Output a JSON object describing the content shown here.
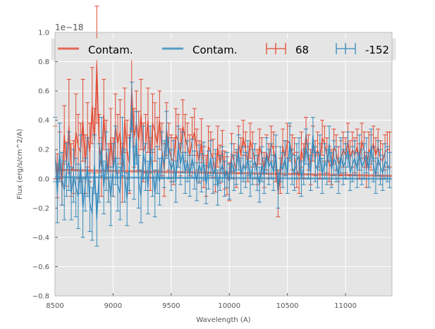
{
  "chart_data": {
    "type": "line",
    "title": "",
    "xlabel": "Wavelength (A)",
    "ylabel": "Flux (erg/s/cm^2/A)",
    "offset_text": "1e−18",
    "xlim": [
      8500,
      11400
    ],
    "ylim": [
      -0.8,
      1.0
    ],
    "xticks": [
      8500,
      9000,
      9500,
      10000,
      10500,
      11000
    ],
    "xtick_labels": [
      "8500",
      "9000",
      "9500",
      "10000",
      "10500",
      "11000"
    ],
    "yticks": [
      -0.8,
      -0.6,
      -0.4,
      -0.2,
      0.0,
      0.2,
      0.4,
      0.6,
      0.8,
      1.0
    ],
    "ytick_labels": [
      "−0.8",
      "−0.6",
      "−0.4",
      "−0.2",
      "0.0",
      "0.2",
      "0.4",
      "0.6",
      "0.8",
      "1.0"
    ],
    "grid": true,
    "legend_position": "top",
    "legend": [
      {
        "label": "Contam.",
        "kind": "line",
        "color": "#e24a33"
      },
      {
        "label": "Contam.",
        "kind": "line",
        "color": "#348abd"
      },
      {
        "label": "68",
        "kind": "errorbar",
        "color": "#e24a33"
      },
      {
        "label": "-152",
        "kind": "errorbar",
        "color": "#348abd"
      }
    ],
    "series": [
      {
        "name": "68",
        "color": "#e24a33",
        "x_start": 8500,
        "x_step": 20,
        "values": [
          0.18,
          0.02,
          0.16,
          -0.06,
          0.3,
          0.1,
          0.36,
          0.06,
          0.08,
          0.32,
          0.22,
          0.18,
          0.4,
          0.1,
          0.3,
          0.18,
          0.5,
          0.26,
          0.78,
          0.24,
          0.08,
          0.44,
          0.2,
          0.04,
          0.28,
          0.08,
          0.36,
          0.24,
          0.32,
          0.04,
          0.4,
          0.2,
          0.1,
          0.62,
          0.28,
          0.38,
          0.26,
          0.44,
          0.18,
          0.24,
          0.4,
          0.1,
          0.38,
          0.32,
          0.24,
          0.4,
          0.2,
          0.06,
          0.34,
          0.22,
          0.14,
          0.12,
          0.3,
          0.26,
          0.18,
          0.36,
          0.28,
          0.22,
          0.16,
          0.26,
          0.32,
          0.2,
          0.12,
          0.26,
          0.08,
          0.02,
          0.22,
          0.18,
          0.14,
          0.04,
          0.22,
          0.1,
          0.2,
          0.06,
          0.02,
          -0.02,
          0.18,
          0.12,
          0.06,
          0.24,
          0.16,
          0.28,
          0.2,
          0.1,
          0.26,
          0.2,
          0.12,
          0.08,
          0.22,
          0.16,
          0.06,
          0.18,
          0.12,
          0.24,
          0.2,
          0.1,
          -0.1,
          0.02,
          0.22,
          0.14,
          0.26,
          0.24,
          0.18,
          0.16,
          0.06,
          0.02,
          0.2,
          0.12,
          0.3,
          0.18,
          0.08,
          0.24,
          0.14,
          0.2,
          0.12,
          0.28,
          0.24,
          0.16,
          0.1,
          0.08,
          0.22,
          0.18,
          0.1,
          0.14,
          0.2,
          0.16,
          0.26,
          0.14,
          0.2,
          0.16,
          0.22,
          0.12,
          0.26,
          0.2,
          0.06,
          0.2,
          0.18,
          0.24,
          0.16,
          0.22,
          0.14,
          0.12,
          0.18,
          0.2,
          0.2
        ],
        "errors": [
          0.18,
          0.15,
          0.16,
          0.12,
          0.2,
          0.15,
          0.32,
          0.18,
          0.18,
          0.26,
          0.22,
          0.2,
          0.28,
          0.2,
          0.22,
          0.2,
          0.26,
          0.22,
          0.4,
          0.2,
          0.2,
          0.24,
          0.2,
          0.2,
          0.2,
          0.2,
          0.22,
          0.2,
          0.22,
          0.2,
          0.22,
          0.2,
          0.2,
          0.3,
          0.2,
          0.22,
          0.2,
          0.24,
          0.2,
          0.2,
          0.22,
          0.18,
          0.2,
          0.2,
          0.18,
          0.2,
          0.18,
          0.18,
          0.18,
          0.16,
          0.16,
          0.16,
          0.18,
          0.18,
          0.16,
          0.18,
          0.16,
          0.16,
          0.14,
          0.16,
          0.16,
          0.14,
          0.14,
          0.15,
          0.14,
          0.14,
          0.14,
          0.14,
          0.13,
          0.13,
          0.14,
          0.13,
          0.13,
          0.13,
          0.13,
          0.13,
          0.13,
          0.12,
          0.12,
          0.12,
          0.12,
          0.12,
          0.12,
          0.12,
          0.12,
          0.12,
          0.12,
          0.12,
          0.12,
          0.12,
          0.12,
          0.12,
          0.12,
          0.12,
          0.12,
          0.12,
          0.16,
          0.12,
          0.12,
          0.12,
          0.12,
          0.12,
          0.12,
          0.12,
          0.12,
          0.12,
          0.12,
          0.12,
          0.12,
          0.12,
          0.12,
          0.12,
          0.12,
          0.12,
          0.12,
          0.12,
          0.12,
          0.12,
          0.12,
          0.12,
          0.12,
          0.12,
          0.12,
          0.12,
          0.12,
          0.12,
          0.12,
          0.12,
          0.12,
          0.12,
          0.12,
          0.12,
          0.12,
          0.12,
          0.12,
          0.12,
          0.12,
          0.12,
          0.12,
          0.12,
          0.12,
          0.12,
          0.12,
          0.12,
          0.12
        ]
      },
      {
        "name": "-152",
        "color": "#348abd",
        "x_start": 8500,
        "x_step": 20,
        "values": [
          0.2,
          -0.1,
          0.18,
          0.0,
          -0.08,
          0.06,
          0.12,
          -0.1,
          0.02,
          -0.06,
          -0.12,
          0.1,
          -0.2,
          -0.04,
          0.08,
          -0.16,
          -0.24,
          0.1,
          -0.28,
          0.04,
          0.22,
          -0.06,
          0.12,
          0.02,
          -0.12,
          0.06,
          0.16,
          -0.04,
          -0.1,
          0.22,
          0.02,
          -0.14,
          0.1,
          0.5,
          0.04,
          0.28,
          -0.02,
          -0.12,
          0.18,
          0.08,
          -0.06,
          0.2,
          0.04,
          -0.1,
          0.06,
          -0.02,
          0.16,
          0.1,
          0.3,
          0.14,
          0.06,
          0.12,
          -0.02,
          0.22,
          0.1,
          0.18,
          0.04,
          0.12,
          0.02,
          0.14,
          0.06,
          -0.02,
          0.1,
          0.04,
          0.12,
          -0.04,
          0.06,
          0.14,
          0.02,
          0.08,
          -0.06,
          0.04,
          0.1,
          0.0,
          0.06,
          -0.02,
          0.12,
          0.04,
          0.08,
          0.18,
          0.02,
          0.1,
          0.06,
          0.14,
          0.0,
          0.08,
          0.12,
          0.04,
          -0.04,
          0.1,
          0.02,
          0.16,
          0.08,
          0.12,
          0.04,
          0.18,
          -0.08,
          0.1,
          0.06,
          0.14,
          0.02,
          0.26,
          0.08,
          0.04,
          0.12,
          0.16,
          0.0,
          0.08,
          0.22,
          0.12,
          0.04,
          0.3,
          0.1,
          0.06,
          0.18,
          0.02,
          0.12,
          0.08,
          0.24,
          0.06,
          0.14,
          0.1,
          0.02,
          0.16,
          0.08,
          0.12,
          0.2,
          0.04,
          0.1,
          0.14,
          0.06,
          0.18,
          0.08,
          0.12,
          0.16,
          0.06,
          0.22,
          0.1,
          0.02,
          0.14,
          0.08,
          0.04,
          0.12,
          0.1,
          0.06
        ],
        "errors": [
          0.22,
          0.2,
          0.2,
          0.18,
          0.2,
          0.18,
          0.2,
          0.18,
          0.18,
          0.2,
          0.22,
          0.2,
          0.2,
          0.18,
          0.2,
          0.2,
          0.18,
          0.2,
          0.18,
          0.2,
          0.2,
          0.18,
          0.2,
          0.18,
          0.2,
          0.18,
          0.2,
          0.18,
          0.18,
          0.2,
          0.18,
          0.18,
          0.18,
          0.16,
          0.18,
          0.18,
          0.18,
          0.18,
          0.18,
          0.16,
          0.18,
          0.16,
          0.16,
          0.16,
          0.16,
          0.16,
          0.16,
          0.16,
          0.16,
          0.14,
          0.14,
          0.14,
          0.14,
          0.14,
          0.14,
          0.14,
          0.14,
          0.14,
          0.14,
          0.13,
          0.13,
          0.13,
          0.13,
          0.13,
          0.13,
          0.13,
          0.13,
          0.12,
          0.12,
          0.12,
          0.12,
          0.12,
          0.12,
          0.12,
          0.12,
          0.12,
          0.12,
          0.12,
          0.12,
          0.12,
          0.12,
          0.12,
          0.12,
          0.12,
          0.12,
          0.12,
          0.12,
          0.12,
          0.12,
          0.12,
          0.12,
          0.12,
          0.12,
          0.12,
          0.12,
          0.12,
          0.12,
          0.12,
          0.12,
          0.12,
          0.12,
          0.12,
          0.12,
          0.12,
          0.12,
          0.12,
          0.12,
          0.12,
          0.12,
          0.12,
          0.12,
          0.12,
          0.12,
          0.12,
          0.12,
          0.12,
          0.12,
          0.12,
          0.12,
          0.12,
          0.12,
          0.12,
          0.12,
          0.12,
          0.12,
          0.12,
          0.12,
          0.12,
          0.12,
          0.12,
          0.12,
          0.12,
          0.12,
          0.12,
          0.12,
          0.12,
          0.12,
          0.12,
          0.12,
          0.12,
          0.12,
          0.12,
          0.12,
          0.12,
          0.12
        ]
      }
    ],
    "contamination": [
      {
        "name": "Contam.",
        "color": "#e24a33",
        "x": [
          8500,
          11400
        ],
        "y": [
          0.06,
          0.02
        ]
      },
      {
        "name": "Contam.",
        "color": "#348abd",
        "x": [
          8500,
          11400
        ],
        "y": [
          0.01,
          0.0
        ]
      }
    ]
  }
}
